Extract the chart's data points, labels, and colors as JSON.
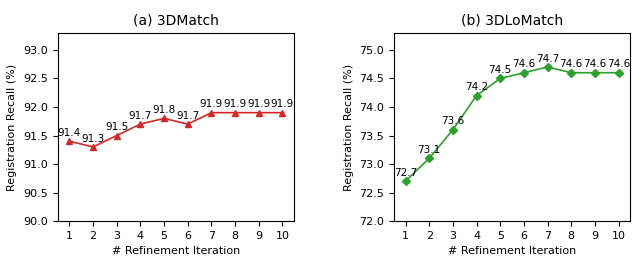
{
  "left_title": "(a) 3DMatch",
  "right_title": "(b) 3DLoMatch",
  "xlabel": "# Refinement Iteration",
  "ylabel": "Registration Recall (%)",
  "x": [
    1,
    2,
    3,
    4,
    5,
    6,
    7,
    8,
    9,
    10
  ],
  "left_y": [
    91.4,
    91.3,
    91.5,
    91.7,
    91.8,
    91.7,
    91.9,
    91.9,
    91.9,
    91.9
  ],
  "right_y": [
    72.7,
    73.1,
    73.6,
    74.2,
    74.5,
    74.6,
    74.7,
    74.6,
    74.6,
    74.6
  ],
  "left_ylim": [
    90.0,
    93.3
  ],
  "right_ylim": [
    72.0,
    75.3
  ],
  "left_yticks": [
    90.0,
    90.5,
    91.0,
    91.5,
    92.0,
    92.5,
    93.0
  ],
  "right_yticks": [
    72.0,
    72.5,
    73.0,
    73.5,
    74.0,
    74.5,
    75.0
  ],
  "left_color": "#d62728",
  "right_color": "#2ca02c",
  "left_marker": "^",
  "right_marker": "D",
  "label_fontsize": 8,
  "title_fontsize": 10,
  "tick_fontsize": 8,
  "annotation_fontsize": 7.5
}
